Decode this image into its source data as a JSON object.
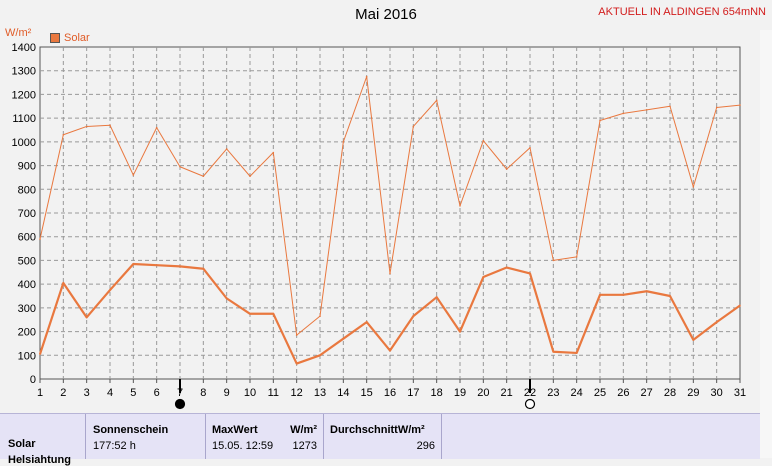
{
  "header": {
    "title": "Mai 2016",
    "station": "AKTUELL IN ALDINGEN 654mNN",
    "unit": "W/m²",
    "legend_label": "Solar"
  },
  "chart_data": {
    "type": "line",
    "x": [
      1,
      2,
      3,
      4,
      5,
      6,
      7,
      8,
      9,
      10,
      11,
      12,
      13,
      14,
      15,
      16,
      17,
      18,
      19,
      20,
      21,
      22,
      23,
      24,
      25,
      26,
      27,
      28,
      29,
      30,
      31
    ],
    "series": [
      {
        "name": "Solar",
        "values": [
          590,
          1030,
          1065,
          1070,
          860,
          1060,
          895,
          855,
          970,
          855,
          955,
          185,
          265,
          1000,
          1275,
          445,
          1065,
          1175,
          730,
          1005,
          885,
          975,
          500,
          515,
          1090,
          1120,
          1135,
          1150,
          810,
          1145,
          1155
        ]
      },
      {
        "values": [
          105,
          405,
          260,
          375,
          485,
          480,
          475,
          465,
          340,
          275,
          275,
          65,
          100,
          170,
          240,
          120,
          265,
          345,
          200,
          430,
          470,
          445,
          115,
          110,
          355,
          355,
          370,
          350,
          165,
          240,
          310
        ]
      }
    ],
    "xlim": [
      1,
      31
    ],
    "ylim": [
      0,
      1400
    ],
    "yticks": [
      "0",
      "100",
      "200",
      "300",
      "400",
      "500",
      "600",
      "700",
      "800",
      "900",
      "1000",
      "1100",
      "1200",
      "1300",
      "1400"
    ],
    "xticks": [
      "1",
      "2",
      "3",
      "4",
      "5",
      "6",
      "7",
      "8",
      "9",
      "10",
      "11",
      "12",
      "13",
      "14",
      "15",
      "16",
      "17",
      "18",
      "19",
      "20",
      "21",
      "22",
      "23",
      "24",
      "25",
      "26",
      "27",
      "28",
      "29",
      "30",
      "31"
    ],
    "grid": true,
    "colors": {
      "series": "#e9783f",
      "grid": "#999999",
      "axis": "#555555"
    },
    "moon_phases": [
      {
        "day": 7,
        "phase": "new-moon"
      },
      {
        "day": 22,
        "phase": "full-moon"
      }
    ]
  },
  "footer": {
    "row_label": "Solar",
    "row_label2": "Helsiahtung",
    "sunshine_header": "Sonnenschein",
    "sunshine_value": "177:52 h",
    "max_header": "MaxWert",
    "max_unit": "W/m²",
    "max_date": "15.05.  12:59",
    "max_value": "1273",
    "avg_header": "DurchschnittW/m²",
    "avg_value": "296"
  }
}
